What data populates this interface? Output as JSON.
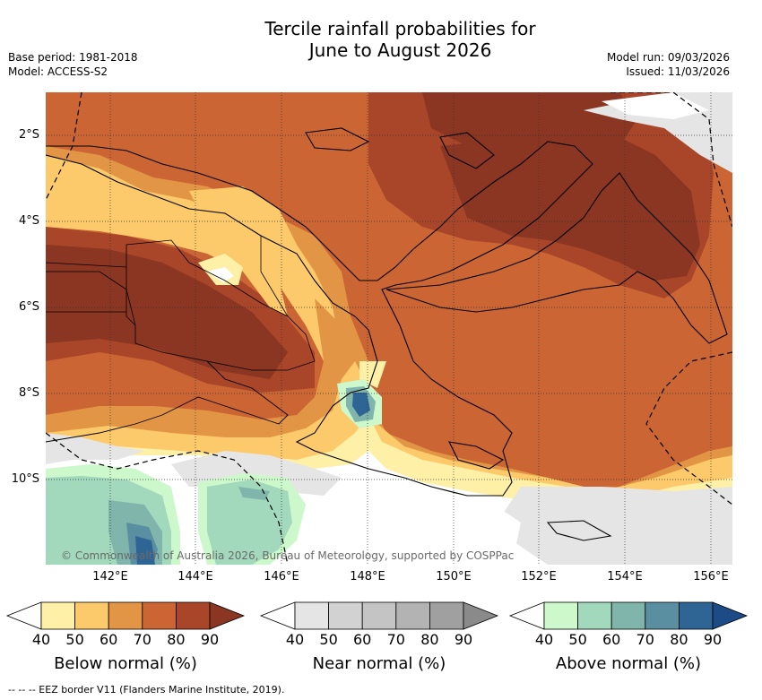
{
  "title": {
    "line1": "Tercile rainfall probabilities for",
    "line2": "June to August 2026"
  },
  "meta": {
    "base_period": "Base period: 1981-2018",
    "model": "Model: ACCESS-S2",
    "model_run": "Model run: 09/03/2026",
    "issued": "Issued: 11/03/2026"
  },
  "map": {
    "lat_labels": [
      "2°S",
      "4°S",
      "6°S",
      "8°S",
      "10°S"
    ],
    "lon_labels": [
      "142°E",
      "144°E",
      "146°E",
      "148°E",
      "150°E",
      "152°E",
      "154°E",
      "156°E"
    ],
    "copyright": "© Commonwealth of Australia 2026, Bureau of Meteorology, supported by COSPPac"
  },
  "legend": {
    "ticks": [
      "40",
      "50",
      "60",
      "70",
      "80",
      "90"
    ],
    "below": {
      "title": "Below normal (%)",
      "colors": [
        "#fff0a8",
        "#fcca6a",
        "#e29645",
        "#cb6634",
        "#a9462a",
        "#8a3622"
      ]
    },
    "near": {
      "title": "Near normal (%)",
      "colors": [
        "#e5e5e5",
        "#d2d2d2",
        "#c4c4c4",
        "#b3b3b3",
        "#a0a0a0",
        "#8a8a8a"
      ]
    },
    "above": {
      "title": "Above normal (%)",
      "colors": [
        "#ccf8cc",
        "#a2d8bb",
        "#80b5ab",
        "#5a8fa2",
        "#2f6595",
        "#1d4b86"
      ]
    }
  },
  "footer": "--  --  -- EEZ border V11 (Flanders Marine Institute, 2019)."
}
